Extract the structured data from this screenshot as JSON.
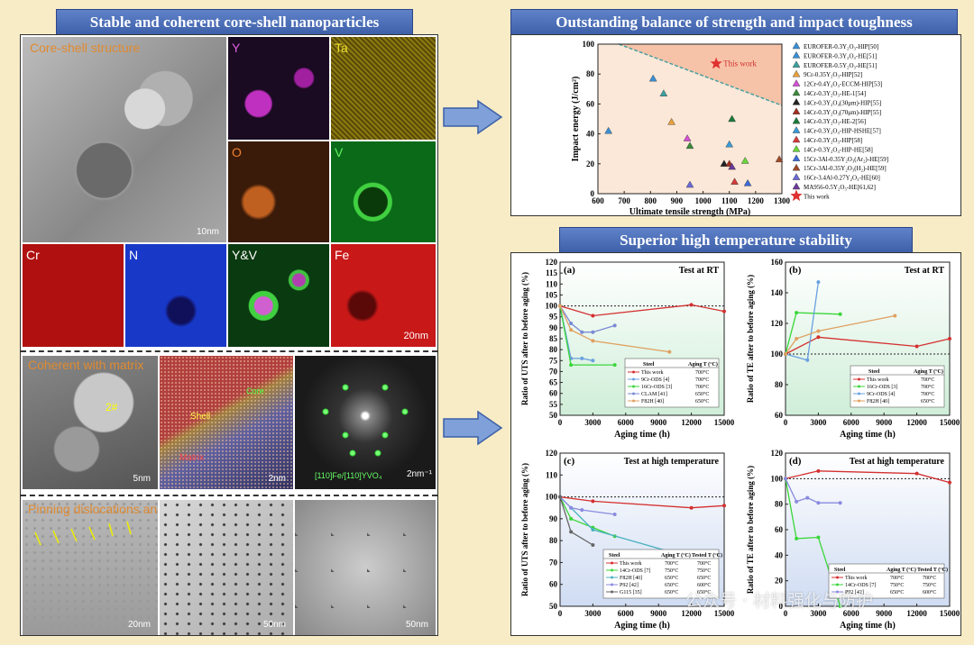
{
  "left": {
    "title": "Stable and coherent core-shell nanoparticles",
    "sections": [
      "Core-shell structure",
      "Coherent with matrix",
      "Pinning dislocations and grains"
    ],
    "maps": [
      "Y",
      "Ta",
      "O",
      "V",
      "Cr",
      "N",
      "Y&V",
      "Fe"
    ],
    "scales": [
      "10nm",
      "20nm",
      "5nm",
      "2nm",
      "2nm⁻¹",
      "20nm",
      "50nm",
      "50nm"
    ],
    "hrtem": {
      "p2": "2#",
      "shell": "Shell",
      "core": "Core",
      "matrix": "Matrix",
      "diff": "[110]Fe/[110]YVO₄"
    }
  },
  "right_top": {
    "title": "Outstanding balance of strength and impact toughness",
    "chart_data": {
      "type": "scatter",
      "xlabel": "Ultimate tensile strength (MPa)",
      "ylabel": "Impact energy (J/cm²)",
      "xlim": [
        600,
        1300
      ],
      "ylim": [
        0,
        100
      ],
      "xticks": [
        600,
        700,
        800,
        900,
        1000,
        1100,
        1200,
        1300
      ],
      "yticks": [
        0,
        20,
        40,
        60,
        80,
        100
      ],
      "annotation": "This work",
      "legend_position": "right",
      "points": [
        {
          "x": 640,
          "y": 42,
          "c": "#3a8fd6",
          "name": "EUROFER-0.3Y₂O₃-HIP[50]"
        },
        {
          "x": 810,
          "y": 77,
          "c": "#3a8fd6",
          "name": "EUROFER-0.3Y₂O₃-HE[51]"
        },
        {
          "x": 850,
          "y": 67,
          "c": "#3aa0a0",
          "name": "EUROFER-0.5Y₂O₃-HE[51]"
        },
        {
          "x": 880,
          "y": 48,
          "c": "#e8a23c",
          "name": "9Cr-0.35Y₂O₃-HIP[52]"
        },
        {
          "x": 940,
          "y": 37,
          "c": "#d44fd4",
          "name": "12Cr-0.4Y₂O₃-ECCM-HIP[53]"
        },
        {
          "x": 950,
          "y": 32,
          "c": "#3a8a3a",
          "name": "14Cr-0.3Y₂O₃-HE-1[54]"
        },
        {
          "x": 1080,
          "y": 20,
          "c": "#222222",
          "name": "14Cr-0.3Y₂O₃(30μm)-HIP[55]"
        },
        {
          "x": 1100,
          "y": 20,
          "c": "#a03020",
          "name": "14Cr-0.3Y₂O₃(70μm)-HIP[55]"
        },
        {
          "x": 1110,
          "y": 50,
          "c": "#1a7a3a",
          "name": "14Cr-0.3Y₂O₃-HE-2[56]"
        },
        {
          "x": 1100,
          "y": 33,
          "c": "#3a9ad6",
          "name": "14Cr-0.3Y₂O₃-HIP-HSHE[57]"
        },
        {
          "x": 1120,
          "y": 8,
          "c": "#d43a3a",
          "name": "14Cr-0.3Y₂O₃-HIP[58]"
        },
        {
          "x": 1160,
          "y": 22,
          "c": "#6ad63a",
          "name": "14Cr-0.3Y₂O₃-HIP-HE[58]"
        },
        {
          "x": 1170,
          "y": 7,
          "c": "#3a6ad6",
          "name": "15Cr-3Al-0.35Y₂O₃(Ar₂)-HE[59]"
        },
        {
          "x": 1290,
          "y": 23,
          "c": "#a04a2a",
          "name": "15Cr-3Al-0.35Y₂O₃(H₂)-HE[59]"
        },
        {
          "x": 950,
          "y": 6,
          "c": "#6a6ad6",
          "name": "16Cr-3.4Al-0.27Y₂O₃-HE[60]"
        },
        {
          "x": 1110,
          "y": 18,
          "c": "#6a3a9a",
          "name": "MA956-0.5Y₂O₃-HE[61,62]"
        },
        {
          "x": 1050,
          "y": 87,
          "c": "#e03030",
          "name": "This work",
          "star": true
        }
      ]
    }
  },
  "right_bottom": {
    "title": "Superior high temperature stability",
    "charts": [
      {
        "id": "a",
        "panel": "(a)",
        "condition": "Test at RT",
        "type": "line",
        "xlabel": "Aging time (h)",
        "ylabel": "Ratio of UTS after to before aging (%)",
        "xlim": [
          0,
          15000
        ],
        "ylim": [
          50,
          120
        ],
        "ref": 100,
        "xticks": [
          0,
          3000,
          6000,
          9000,
          12000,
          15000
        ],
        "yticks": [
          50,
          55,
          60,
          65,
          70,
          75,
          80,
          85,
          90,
          95,
          100,
          105,
          110,
          115,
          120
        ],
        "legend_head": [
          "Steel",
          "Aging T (°C)"
        ],
        "series": [
          {
            "name": "This work",
            "t": "700°C",
            "c": "#d43030",
            "x": [
              0,
              3000,
              12000,
              15000
            ],
            "y": [
              100,
              95.5,
              100.5,
              97.5
            ]
          },
          {
            "name": "9Cr-ODS [4]",
            "t": "700°C",
            "c": "#6aa0e0",
            "x": [
              0,
              1000,
              2000,
              3000
            ],
            "y": [
              100,
              76,
              76,
              75
            ]
          },
          {
            "name": "16Cr-ODS [3]",
            "t": "700°C",
            "c": "#3ad63a",
            "x": [
              0,
              1000,
              5000
            ],
            "y": [
              100,
              73,
              73
            ]
          },
          {
            "name": "CLAM [41]",
            "t": "650°C",
            "c": "#7a8ad6",
            "x": [
              0,
              1000,
              2000,
              3000,
              5000
            ],
            "y": [
              100,
              92,
              88,
              88,
              91
            ]
          },
          {
            "name": "F82H [40]",
            "t": "650°C",
            "c": "#e0a060",
            "x": [
              0,
              1000,
              3000,
              10000
            ],
            "y": [
              100,
              89,
              84,
              79
            ]
          }
        ]
      },
      {
        "id": "b",
        "panel": "(b)",
        "condition": "Test at RT",
        "type": "line",
        "xlabel": "Aging time (h)",
        "ylabel": "Ratio of TE after to before aging (%)",
        "xlim": [
          0,
          15000
        ],
        "ylim": [
          60,
          160
        ],
        "ref": 100,
        "xticks": [
          0,
          3000,
          6000,
          9000,
          12000,
          15000
        ],
        "yticks": [
          60,
          80,
          100,
          120,
          140,
          160
        ],
        "legend_head": [
          "Steel",
          "Aging T (°C)"
        ],
        "series": [
          {
            "name": "This work",
            "t": "700°C",
            "c": "#d43030",
            "x": [
              0,
              3000,
              12000,
              15000
            ],
            "y": [
              100,
              111,
              105,
              110
            ]
          },
          {
            "name": "16Cr-ODS [3]",
            "t": "700°C",
            "c": "#3ad63a",
            "x": [
              0,
              1000,
              5000
            ],
            "y": [
              100,
              127,
              126
            ]
          },
          {
            "name": "9Cr-ODS [4]",
            "t": "700°C",
            "c": "#6aa0e0",
            "x": [
              0,
              2000,
              3000
            ],
            "y": [
              100,
              96,
              147
            ]
          },
          {
            "name": "F82H [40]",
            "t": "650°C",
            "c": "#e0a060",
            "x": [
              0,
              1000,
              3000,
              10000
            ],
            "y": [
              100,
              110,
              115,
              125
            ]
          }
        ]
      },
      {
        "id": "c",
        "panel": "(c)",
        "condition": "Test at high temperature",
        "type": "line",
        "xlabel": "Aging time (h)",
        "ylabel": "Ratio of UTS after to before aging (%)",
        "xlim": [
          0,
          15000
        ],
        "ylim": [
          50,
          120
        ],
        "ref": 100,
        "xticks": [
          0,
          3000,
          6000,
          9000,
          12000,
          15000
        ],
        "yticks": [
          50,
          60,
          70,
          80,
          90,
          100,
          110,
          120
        ],
        "legend_head": [
          "Steel",
          "Aging T (°C)",
          "Tested T (°C)"
        ],
        "series": [
          {
            "name": "This work",
            "t": "700°C",
            "t2": "700°C",
            "c": "#d43030",
            "x": [
              0,
              3000,
              12000,
              15000
            ],
            "y": [
              100,
              98,
              95,
              96
            ]
          },
          {
            "name": "14Cr-ODS [7]",
            "t": "750°C",
            "t2": "750°C",
            "c": "#3ad63a",
            "x": [
              0,
              1000,
              3000,
              5000
            ],
            "y": [
              100,
              90,
              86,
              82
            ]
          },
          {
            "name": "F82H [40]",
            "t": "650°C",
            "t2": "650°C",
            "c": "#4ab0c0",
            "x": [
              0,
              1000,
              3000,
              10000
            ],
            "y": [
              100,
              95,
              85,
              75
            ]
          },
          {
            "name": "P92 [42]",
            "t": "650°C",
            "t2": "600°C",
            "c": "#8a8ae0",
            "x": [
              0,
              1000,
              2000,
              5000
            ],
            "y": [
              100,
              95,
              94,
              92
            ]
          },
          {
            "name": "G115 [35]",
            "t": "650°C",
            "t2": "650°C",
            "c": "#666666",
            "x": [
              0,
              1000,
              3000
            ],
            "y": [
              100,
              84,
              78
            ]
          }
        ]
      },
      {
        "id": "d",
        "panel": "(d)",
        "condition": "Test at high temperature",
        "type": "line",
        "xlabel": "Aging time (h)",
        "ylabel": "Ratio of TE after to before aging (%)",
        "xlim": [
          0,
          15000
        ],
        "ylim": [
          0,
          120
        ],
        "ref": 100,
        "xticks": [
          0,
          3000,
          6000,
          9000,
          12000,
          15000
        ],
        "yticks": [
          0,
          20,
          40,
          60,
          80,
          100,
          120
        ],
        "legend_head": [
          "Steel",
          "Aging T (°C)",
          "Tested T (°C)"
        ],
        "series": [
          {
            "name": "This work",
            "t": "700°C",
            "t2": "700°C",
            "c": "#d43030",
            "x": [
              0,
              3000,
              12000,
              15000
            ],
            "y": [
              100,
              106,
              104,
              97
            ]
          },
          {
            "name": "14Cr-ODS [7]",
            "t": "750°C",
            "t2": "750°C",
            "c": "#3ad63a",
            "x": [
              0,
              1000,
              3000,
              5000
            ],
            "y": [
              100,
              53,
              54,
              0
            ]
          },
          {
            "name": "P92 [42]",
            "t": "650°C",
            "t2": "600°C",
            "c": "#8a8ae0",
            "x": [
              0,
              1000,
              2000,
              3000,
              5000
            ],
            "y": [
              100,
              82,
              85,
              81,
              81
            ]
          }
        ]
      }
    ]
  },
  "watermark": "公众号 · 材料强化与防护"
}
